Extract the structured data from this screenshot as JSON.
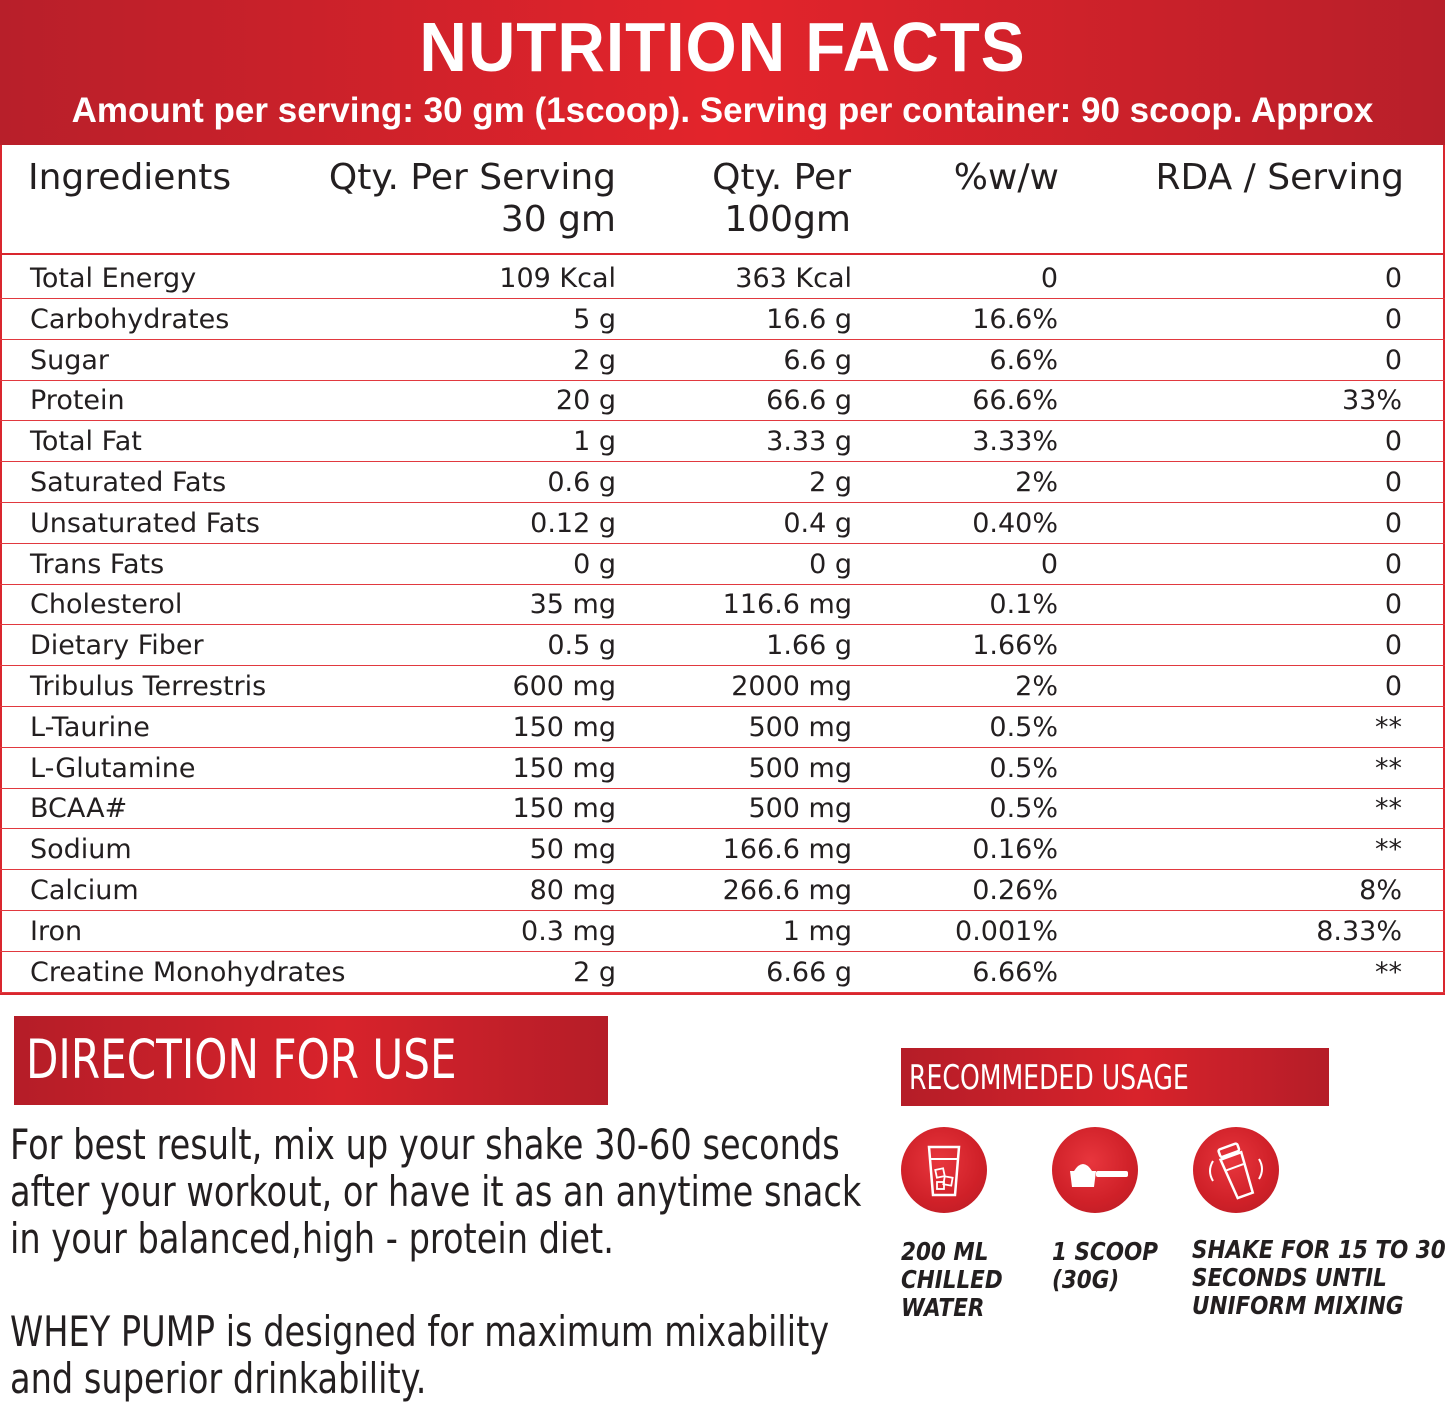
{
  "header": {
    "title": "NUTRITION FACTS",
    "subtitle": "Amount per serving: 30 gm (1scoop). Serving per container: 90 scoop. Approx"
  },
  "table": {
    "columns": {
      "ingredients": "Ingredients",
      "qty_serving_line1": "Qty. Per Serving",
      "qty_serving_line2": "30 gm",
      "qty_100_line1": "Qty. Per",
      "qty_100_line2": "100gm",
      "ww": "%w/w",
      "rda": "RDA / Serving"
    },
    "rows": [
      {
        "name": "Total Energy",
        "q30": "109 Kcal",
        "q100": "363 Kcal",
        "ww": "0",
        "rda": "0"
      },
      {
        "name": "Carbohydrates",
        "q30": "5 g",
        "q100": "16.6 g",
        "ww": "16.6%",
        "rda": "0"
      },
      {
        "name": "Sugar",
        "q30": "2 g",
        "q100": "6.6 g",
        "ww": "6.6%",
        "rda": "0"
      },
      {
        "name": "Protein",
        "q30": "20 g",
        "q100": "66.6 g",
        "ww": "66.6%",
        "rda": "33%"
      },
      {
        "name": "Total Fat",
        "q30": "1 g",
        "q100": "3.33 g",
        "ww": "3.33%",
        "rda": "0"
      },
      {
        "name": "Saturated Fats",
        "q30": "0.6 g",
        "q100": "2 g",
        "ww": "2%",
        "rda": "0"
      },
      {
        "name": "Unsaturated Fats",
        "q30": "0.12 g",
        "q100": "0.4 g",
        "ww": "0.40%",
        "rda": "0"
      },
      {
        "name": "Trans Fats",
        "q30": "0 g",
        "q100": "0 g",
        "ww": "0",
        "rda": "0"
      },
      {
        "name": "Cholesterol",
        "q30": "35 mg",
        "q100": "116.6 mg",
        "ww": "0.1%",
        "rda": "0"
      },
      {
        "name": "Dietary Fiber",
        "q30": "0.5 g",
        "q100": "1.66 g",
        "ww": "1.66%",
        "rda": "0"
      },
      {
        "name": "Tribulus Terrestris",
        "q30": "600 mg",
        "q100": "2000 mg",
        "ww": "2%",
        "rda": "0"
      },
      {
        "name": "L-Taurine",
        "q30": "150 mg",
        "q100": "500 mg",
        "ww": "0.5%",
        "rda": "**"
      },
      {
        "name": "L-Glutamine",
        "q30": "150 mg",
        "q100": "500 mg",
        "ww": "0.5%",
        "rda": "**"
      },
      {
        "name": "BCAA#",
        "q30": "150 mg",
        "q100": "500 mg",
        "ww": "0.5%",
        "rda": "**"
      },
      {
        "name": "Sodium",
        "q30": "50 mg",
        "q100": "166.6 mg",
        "ww": "0.16%",
        "rda": "**"
      },
      {
        "name": "Calcium",
        "q30": "80 mg",
        "q100": "266.6 mg",
        "ww": "0.26%",
        "rda": "8%"
      },
      {
        "name": "Iron",
        "q30": "0.3 mg",
        "q100": "1 mg",
        "ww": "0.001%",
        "rda": "8.33%"
      },
      {
        "name": "Creatine Monohydrates",
        "q30": "2 g",
        "q100": "6.66 g",
        "ww": "6.66%",
        "rda": "**"
      }
    ]
  },
  "direction": {
    "title": "DIRECTION FOR USE",
    "paragraph1": [
      "For best result, mix up your shake 30-60 seconds",
      "after your workout, or have it as an anytime snack",
      "in your balanced,high - protein diet."
    ],
    "paragraph2": [
      "WHEY PUMP is designed for maximum mixability",
      "and superior drinkability."
    ]
  },
  "recommended": {
    "title": "RECOMMEDED USAGE",
    "items": [
      {
        "icon": "water-glass-icon",
        "lines": [
          "200 ML",
          "CHILLED",
          "WATER"
        ]
      },
      {
        "icon": "scoop-icon",
        "lines": [
          "1 SCOOP",
          "(30G)"
        ]
      },
      {
        "icon": "shaker-icon",
        "lines": [
          "SHAKE FOR 15 TO 30",
          "SECONDS UNTIL",
          "UNIFORM MIXING"
        ]
      }
    ]
  },
  "colors": {
    "brand_red": "#d9262e",
    "dark_red": "#b81f2a",
    "text": "#231f20"
  }
}
